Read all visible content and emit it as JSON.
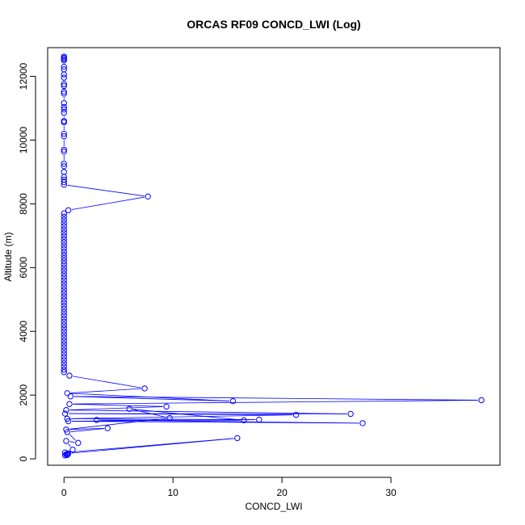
{
  "chart_data": {
    "type": "line",
    "title": "ORCAS RF09 CONCD_LWI (Log)",
    "xlabel": "CONCD_LWI",
    "ylabel": "Altitude (m)",
    "xlim": [
      -1.5,
      40
    ],
    "ylim": [
      -200,
      12900
    ],
    "x_ticks": [
      0,
      10,
      20,
      30
    ],
    "y_ticks": [
      0,
      2000,
      4000,
      6000,
      8000,
      10000,
      12000
    ],
    "grid": false,
    "legend": "none",
    "colors": {
      "series": "#0000ff",
      "axis": "#000000",
      "background": "#ffffff"
    },
    "series": [
      {
        "marker": "open-circle",
        "line": true,
        "points": [
          [
            0,
            12620
          ],
          [
            0,
            12580
          ],
          [
            0,
            12540
          ],
          [
            0,
            12500
          ],
          [
            0,
            12300
          ],
          [
            0,
            12220
          ],
          [
            0,
            12060
          ],
          [
            0,
            11960
          ],
          [
            0,
            11760
          ],
          [
            0,
            11700
          ],
          [
            0,
            11520
          ],
          [
            0,
            11460
          ],
          [
            0,
            11160
          ],
          [
            0,
            11040
          ],
          [
            0,
            10960
          ],
          [
            0,
            10860
          ],
          [
            0,
            10600
          ],
          [
            0,
            10560
          ],
          [
            0,
            10200
          ],
          [
            0,
            10120
          ],
          [
            0,
            9700
          ],
          [
            0,
            9640
          ],
          [
            0,
            9260
          ],
          [
            0,
            9180
          ],
          [
            0,
            9000
          ],
          [
            0,
            8850
          ],
          [
            0,
            8760
          ],
          [
            0,
            8680
          ],
          [
            0,
            8600
          ],
          [
            7.7,
            8230
          ],
          [
            0.4,
            7800
          ],
          [
            0,
            7700
          ],
          [
            0,
            7600
          ],
          [
            0,
            7500
          ],
          [
            0,
            7400
          ],
          [
            0,
            7300
          ],
          [
            0,
            7200
          ],
          [
            0,
            7100
          ],
          [
            0,
            7000
          ],
          [
            0,
            6900
          ],
          [
            0,
            6800
          ],
          [
            0,
            6700
          ],
          [
            0,
            6600
          ],
          [
            0,
            6500
          ],
          [
            0,
            6400
          ],
          [
            0,
            6300
          ],
          [
            0,
            6200
          ],
          [
            0,
            6100
          ],
          [
            0,
            6000
          ],
          [
            0,
            5900
          ],
          [
            0,
            5800
          ],
          [
            0,
            5700
          ],
          [
            0,
            5600
          ],
          [
            0,
            5500
          ],
          [
            0,
            5400
          ],
          [
            0,
            5300
          ],
          [
            0,
            5200
          ],
          [
            0,
            5100
          ],
          [
            0,
            5000
          ],
          [
            0,
            4900
          ],
          [
            0,
            4800
          ],
          [
            0,
            4700
          ],
          [
            0,
            4600
          ],
          [
            0,
            4500
          ],
          [
            0,
            4400
          ],
          [
            0,
            4300
          ],
          [
            0,
            4200
          ],
          [
            0,
            4100
          ],
          [
            0,
            4000
          ],
          [
            0,
            3900
          ],
          [
            0,
            3800
          ],
          [
            0,
            3700
          ],
          [
            0,
            3600
          ],
          [
            0,
            3500
          ],
          [
            0,
            3400
          ],
          [
            0,
            3300
          ],
          [
            0,
            3200
          ],
          [
            0,
            3100
          ],
          [
            0,
            3000
          ],
          [
            0,
            2900
          ],
          [
            0,
            2800
          ],
          [
            0,
            2720
          ],
          [
            0.5,
            2610
          ],
          [
            7.4,
            2210
          ],
          [
            0.3,
            2060
          ],
          [
            15.5,
            1810
          ],
          [
            0.6,
            1960
          ],
          [
            38.3,
            1840
          ],
          [
            0.5,
            1720
          ],
          [
            9.4,
            1640
          ],
          [
            0.2,
            1530
          ],
          [
            26.3,
            1410
          ],
          [
            0.1,
            1420
          ],
          [
            21.3,
            1380
          ],
          [
            0.3,
            1260
          ],
          [
            17.9,
            1230
          ],
          [
            0.4,
            1180
          ],
          [
            27.4,
            1120
          ],
          [
            3.0,
            1220
          ],
          [
            16.5,
            1210
          ],
          [
            6.0,
            1570
          ],
          [
            9.7,
            1280
          ],
          [
            0.2,
            920
          ],
          [
            4.0,
            960
          ],
          [
            0.3,
            840
          ],
          [
            1.3,
            500
          ],
          [
            0.2,
            560
          ],
          [
            0.8,
            290
          ],
          [
            0.4,
            170
          ],
          [
            15.9,
            650
          ],
          [
            0.1,
            200
          ],
          [
            0.3,
            120
          ],
          [
            0.2,
            140
          ],
          [
            0.3,
            160
          ],
          [
            0.1,
            110
          ]
        ]
      }
    ]
  }
}
